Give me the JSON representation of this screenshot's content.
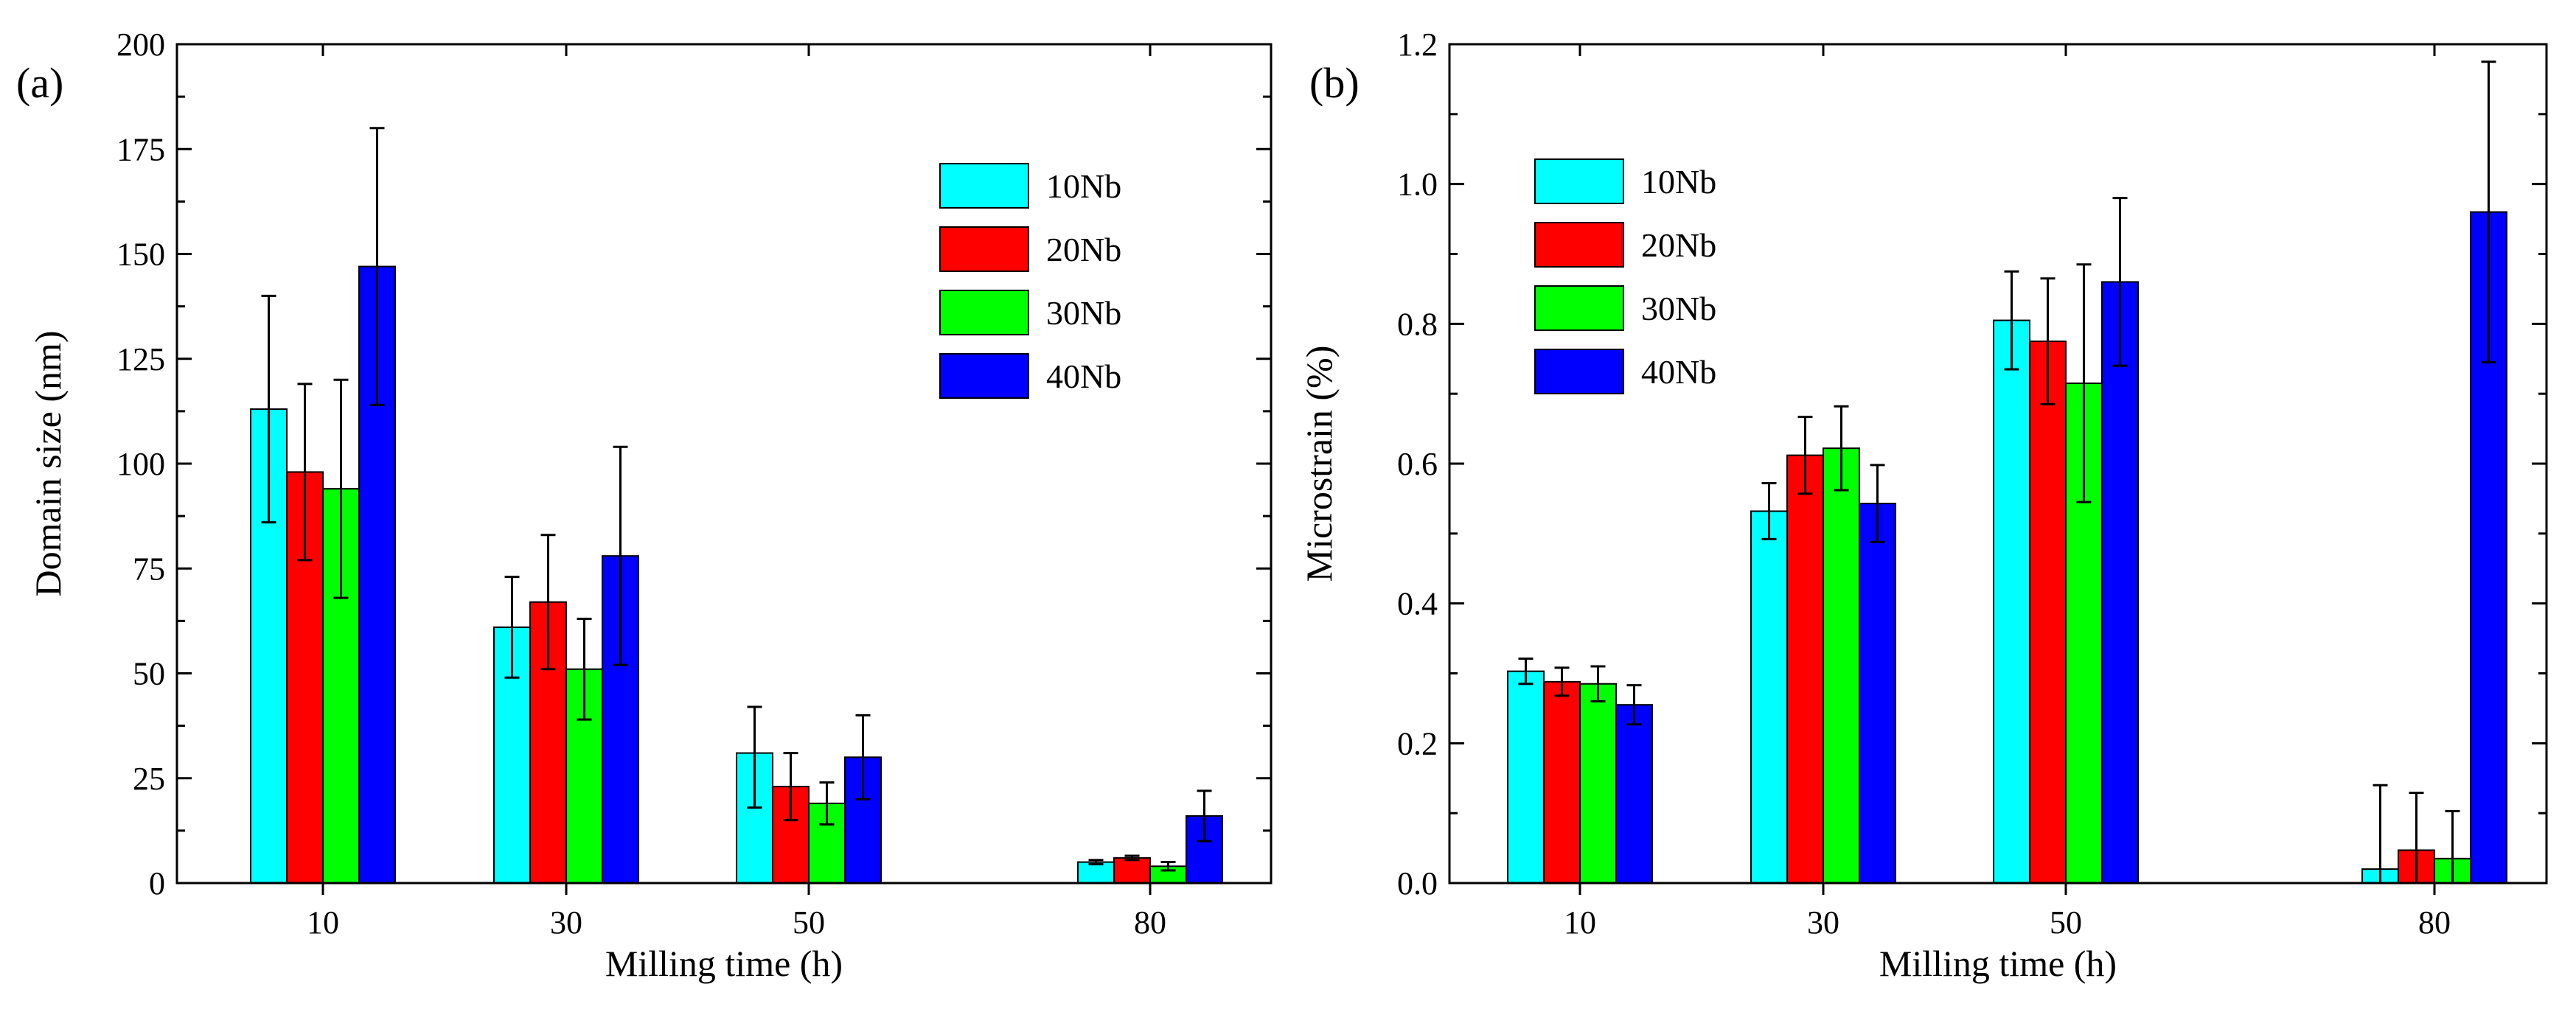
{
  "figure": {
    "colors": {
      "10Nb": "#00ffff",
      "20Nb": "#ff0000",
      "30Nb": "#00ff00",
      "40Nb": "#0000ff"
    }
  },
  "chart_data": [
    {
      "type": "bar",
      "panel_label": "(a)",
      "title": "",
      "xlabel": "Milling time (h)",
      "ylabel": "Domain size (nm)",
      "categories": [
        "10",
        "30",
        "50",
        "80"
      ],
      "ylim": [
        0,
        200
      ],
      "yticks": [
        0,
        25,
        50,
        75,
        100,
        125,
        150,
        175,
        200
      ],
      "ytick_labels": [
        "0",
        "25",
        "50",
        "75",
        "100",
        "125",
        "150",
        "175",
        "200"
      ],
      "legend_position": "top-right",
      "grid": false,
      "series": [
        {
          "name": "10Nb",
          "values": [
            113,
            61,
            31,
            5
          ],
          "err_low": [
            27,
            12,
            13,
            0.5
          ],
          "err_high": [
            27,
            12,
            11,
            0.5
          ]
        },
        {
          "name": "20Nb",
          "values": [
            98,
            67,
            23,
            6
          ],
          "err_low": [
            21,
            16,
            8,
            0.5
          ],
          "err_high": [
            21,
            16,
            8,
            0.5
          ]
        },
        {
          "name": "30Nb",
          "values": [
            94,
            51,
            19,
            4
          ],
          "err_low": [
            26,
            12,
            5,
            1
          ],
          "err_high": [
            26,
            12,
            5,
            1
          ]
        },
        {
          "name": "40Nb",
          "values": [
            147,
            78,
            30,
            16
          ],
          "err_low": [
            33,
            26,
            10,
            6
          ],
          "err_high": [
            33,
            26,
            10,
            6
          ]
        }
      ]
    },
    {
      "type": "bar",
      "panel_label": "(b)",
      "title": "",
      "xlabel": "Milling time (h)",
      "ylabel": "Microstrain (%)",
      "categories": [
        "10",
        "30",
        "50",
        "80"
      ],
      "ylim": [
        0,
        1.2
      ],
      "yticks": [
        0,
        0.2,
        0.4,
        0.6,
        0.8,
        1.0,
        1.2
      ],
      "ytick_labels": [
        "0.0",
        "0.2",
        "0.4",
        "0.6",
        "0.8",
        "1.0",
        "1.2"
      ],
      "legend_position": "top-left",
      "grid": false,
      "series": [
        {
          "name": "10Nb",
          "values": [
            0.303,
            0.532,
            0.805,
            0.02
          ],
          "err_low": [
            0.018,
            0.04,
            0.07,
            0.12
          ],
          "err_high": [
            0.018,
            0.04,
            0.07,
            0.12
          ]
        },
        {
          "name": "20Nb",
          "values": [
            0.288,
            0.612,
            0.775,
            0.047
          ],
          "err_low": [
            0.02,
            0.055,
            0.09,
            0.082
          ],
          "err_high": [
            0.02,
            0.055,
            0.09,
            0.082
          ]
        },
        {
          "name": "30Nb",
          "values": [
            0.285,
            0.622,
            0.715,
            0.035
          ],
          "err_low": [
            0.025,
            0.06,
            0.17,
            0.068
          ],
          "err_high": [
            0.025,
            0.06,
            0.17,
            0.068
          ]
        },
        {
          "name": "40Nb",
          "values": [
            0.255,
            0.543,
            0.86,
            0.96
          ],
          "err_low": [
            0.028,
            0.055,
            0.12,
            0.215
          ],
          "err_high": [
            0.028,
            0.055,
            0.12,
            0.215
          ]
        }
      ]
    }
  ]
}
